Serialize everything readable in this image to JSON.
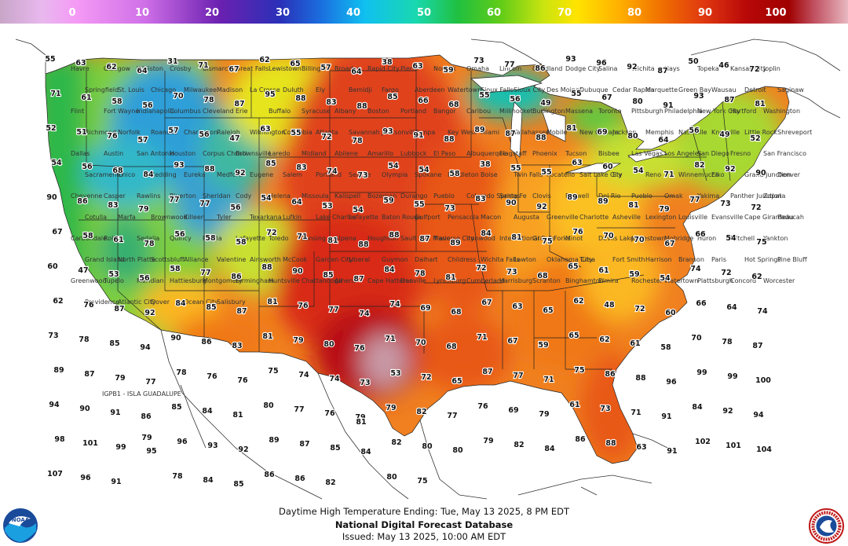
{
  "colorbar": {
    "ticks": [
      "0",
      "10",
      "20",
      "30",
      "40",
      "50",
      "60",
      "70",
      "80",
      "90",
      "100"
    ],
    "stops": [
      "#c8a6c8",
      "#e0b0e6",
      "#f59af5",
      "#c060e0",
      "#7a20b8",
      "#3a2ab0",
      "#1e6ae0",
      "#10b8f0",
      "#18d8b0",
      "#30c040",
      "#7fd010",
      "#d8e808",
      "#ffd800",
      "#ffa000",
      "#f06000",
      "#d82000",
      "#a00000",
      "#c04040",
      "#e8b0b8"
    ]
  },
  "map": {
    "colors": {
      "west_coast": "#2fb84a",
      "great_basin": "#7fcf3a",
      "rockies": "#2e9fd8",
      "northern_plains": "#e6e41a",
      "central": "#e0421a",
      "texas": "#b80c12",
      "texas_core": "#c89aa6",
      "southeast": "#f07818",
      "east": "#fbb820",
      "northeast": "#c8e030",
      "lakes": "#18c0b0"
    },
    "region_label": "IGPB1 - ISLA GUADALUPE",
    "cities": [
      "Havre",
      "Glasgow",
      "Williston",
      "Crosby",
      "Bismarck",
      "Great Falls",
      "Lewistown",
      "Billings",
      "Broadus",
      "Rapid City",
      "Pierre",
      "Norfolk",
      "Omaha",
      "Lincoln",
      "Goodland",
      "Dodge City",
      "Salina",
      "Wichita",
      "Hays",
      "Topeka",
      "Kansas City",
      "Joplin",
      "Springfield",
      "St. Louis",
      "Chicago",
      "Milwaukee",
      "Madison",
      "La Crosse",
      "Duluth",
      "Ely",
      "Bemidji",
      "Fargo",
      "Aberdeen",
      "Watertown",
      "Sioux Falls",
      "Sioux City",
      "Des Moines",
      "Dubuque",
      "Cedar Rapids",
      "Marquette",
      "Green Bay",
      "Wausau",
      "Detroit",
      "Saginaw",
      "Flint",
      "Fort Wayne",
      "Indianapolis",
      "Columbus",
      "Cleveland",
      "Erie",
      "Buffalo",
      "Syracuse",
      "Albany",
      "Boston",
      "Portland",
      "Bangor",
      "Caribou",
      "Millinocket",
      "Burlington",
      "Massena",
      "Toronto",
      "Pittsburgh",
      "Philadelphia",
      "New York City",
      "Hartford",
      "Washington",
      "Richmond",
      "Norfolk",
      "Roanoke",
      "Charleston",
      "Raleigh",
      "Wilmington",
      "Columbia",
      "Atlanta",
      "Savannah",
      "Jacksonville",
      "Tampa",
      "Key West",
      "Miami",
      "Tallahassee",
      "Mobile",
      "New Orleans",
      "Jackson",
      "Memphis",
      "Nashville",
      "Knoxville",
      "Little Rock",
      "Shreveport",
      "Dallas",
      "Austin",
      "San Antonio",
      "Houston",
      "Corpus Christi",
      "Brownsville",
      "Laredo",
      "Midland",
      "Abilene",
      "Amarillo",
      "Lubbock",
      "El Paso",
      "Albuquerque",
      "Flagstaff",
      "Phoenix",
      "Tucson",
      "Bisbee",
      "Las Vegas",
      "Los Angeles",
      "San Diego",
      "Fresno",
      "San Francisco",
      "Sacramento",
      "Chico",
      "Redding",
      "Eureka",
      "Medford",
      "Eugene",
      "Salem",
      "Portland",
      "Seattle",
      "Olympia",
      "Spokane",
      "Pendleton",
      "Boise",
      "Twin Falls",
      "Pocatello",
      "Salt Lake City",
      "Ely",
      "Reno",
      "Winnemucca",
      "Elko",
      "Grand Junction",
      "Denver",
      "Cheyenne",
      "Casper",
      "Rawlins",
      "Riverton",
      "Sheridan",
      "Cody",
      "Helena",
      "Missoula",
      "Kalispell",
      "Bozeman",
      "Durango",
      "Pueblo",
      "Colorado Springs",
      "Santa Fe",
      "Clovis",
      "Roswell",
      "Del Rio",
      "Pueblo",
      "Omak",
      "Yakima",
      "Panther Junction",
      "Zapata",
      "Cotulla",
      "Marfa",
      "Brownwood",
      "Killeen",
      "Tyler",
      "Texarkana",
      "Lufkin",
      "Lake Charles",
      "Lafayette",
      "Baton Rouge",
      "Gulfport",
      "Pensacola",
      "Macon",
      "Augusta",
      "Greenville",
      "Charlotte",
      "Asheville",
      "Lexington",
      "Louisville",
      "Evansville",
      "Cape Girardeau",
      "Paducah",
      "Carbondale",
      "Rolla",
      "Sedalia",
      "Quincy",
      "Peoria",
      "Lafayette",
      "Toledo",
      "Lansing",
      "Alpena",
      "Houghton",
      "Sault Ste. Marie",
      "Traverse City",
      "Ironwood",
      "International Falls",
      "Grand Forks",
      "Minot",
      "Devils Lake",
      "Jamestown",
      "Mobridge",
      "Huron",
      "Mitchell",
      "Yankton",
      "Grand Island",
      "North Platte",
      "Scottsbluff",
      "Alliance",
      "Valentine",
      "Ainsworth",
      "McCook",
      "Garden City",
      "Liberal",
      "Guymon",
      "Dalhart",
      "Childress",
      "Wichita Falls",
      "Lawton",
      "Oklahoma City",
      "Tulsa",
      "Fort Smith",
      "Harrison",
      "Branson",
      "Paris",
      "Hot Springs",
      "Pine Bluff",
      "Greenwood",
      "Tupelo",
      "Meridian",
      "Hattiesburg",
      "Montgomery",
      "Birmingham",
      "Huntsville",
      "Chattanooga",
      "Athens",
      "Cape Hatteras",
      "Danville",
      "Lynchburg",
      "Cumberland",
      "Harrisburg",
      "Scranton",
      "Binghamton",
      "Elmira",
      "Rochester",
      "Watertown",
      "Plattsburgh",
      "Concord",
      "Worcester",
      "Providence",
      "Atlantic City",
      "Dover",
      "Ocean City",
      "Salisbury"
    ],
    "temps": [
      "55",
      "63",
      "62",
      "64",
      "31",
      "71",
      "67",
      "62",
      "65",
      "57",
      "64",
      "38",
      "63",
      "59",
      "73",
      "77",
      "86",
      "93",
      "96",
      "92",
      "87",
      "50",
      "46",
      "72",
      "71",
      "61",
      "58",
      "56",
      "70",
      "78",
      "87",
      "95",
      "88",
      "83",
      "88",
      "85",
      "66",
      "68",
      "55",
      "56",
      "49",
      "55",
      "67",
      "80",
      "91",
      "93",
      "87",
      "81",
      "52",
      "51",
      "76",
      "57",
      "57",
      "56",
      "47",
      "63",
      "55",
      "72",
      "78",
      "93",
      "91",
      "88",
      "89",
      "87",
      "88",
      "81",
      "69",
      "80",
      "64",
      "56",
      "49",
      "52",
      "54",
      "56",
      "68",
      "84",
      "93",
      "88",
      "92",
      "85",
      "83",
      "74",
      "73",
      "54",
      "54",
      "58",
      "38",
      "55",
      "55",
      "63",
      "60",
      "54",
      "71",
      "82",
      "92",
      "90",
      "90",
      "86",
      "83",
      "79",
      "77",
      "77",
      "56",
      "54",
      "64",
      "53",
      "54",
      "59",
      "55",
      "73",
      "83",
      "90",
      "92",
      "89",
      "89",
      "81",
      "79",
      "77",
      "73",
      "72",
      "67",
      "58",
      "61",
      "78",
      "56",
      "58",
      "58",
      "72",
      "71",
      "81",
      "88",
      "88",
      "87",
      "89",
      "84",
      "81",
      "75",
      "76",
      "70",
      "70",
      "67",
      "66",
      "54",
      "75",
      "60",
      "47",
      "53",
      "56",
      "58",
      "77",
      "86",
      "88",
      "90",
      "85",
      "87",
      "84",
      "78",
      "81",
      "72",
      "73",
      "68",
      "65",
      "61",
      "59",
      "54",
      "74",
      "72",
      "62",
      "62",
      "76",
      "87",
      "92",
      "84",
      "85",
      "87",
      "81",
      "76",
      "77",
      "74",
      "74",
      "69",
      "68",
      "67",
      "63",
      "65",
      "62",
      "48",
      "72",
      "60",
      "66",
      "64",
      "74",
      "73",
      "78",
      "85",
      "94",
      "90",
      "86",
      "83",
      "81",
      "79",
      "80",
      "76",
      "71",
      "70",
      "68",
      "71",
      "67",
      "59",
      "65",
      "62",
      "61",
      "58",
      "70",
      "78",
      "87",
      "89",
      "87",
      "79",
      "77",
      "78",
      "76",
      "76",
      "75",
      "74",
      "74",
      "73",
      "53",
      "72",
      "65",
      "87",
      "77",
      "71",
      "75",
      "86",
      "88",
      "96",
      "99",
      "99",
      "100",
      "94",
      "90",
      "91",
      "86",
      "85",
      "84",
      "81",
      "80",
      "77",
      "76",
      "79",
      "79",
      "82",
      "77",
      "76",
      "69",
      "79",
      "61",
      "73",
      "71",
      "91",
      "84",
      "92",
      "94",
      "98",
      "101",
      "99",
      "95",
      "96",
      "93",
      "92",
      "89",
      "87",
      "85",
      "84",
      "82",
      "80",
      "80",
      "79",
      "82",
      "84",
      "86",
      "88",
      "63",
      "91",
      "102",
      "101",
      "104",
      "107",
      "96",
      "91",
      "79",
      "78",
      "84",
      "85",
      "86",
      "86",
      "82",
      "81",
      "80",
      "75"
    ]
  },
  "footer": {
    "line1": "Daytime High Temperature Ending: Tue, May 13 2025, 8 PM EDT",
    "line2": "National Digital Forecast Database",
    "line3": "Issued: May 13 2025, 10:00 AM EDT"
  },
  "logos": {
    "left": "NOAA",
    "right": "NATIONAL WEATHER SERVICE"
  }
}
